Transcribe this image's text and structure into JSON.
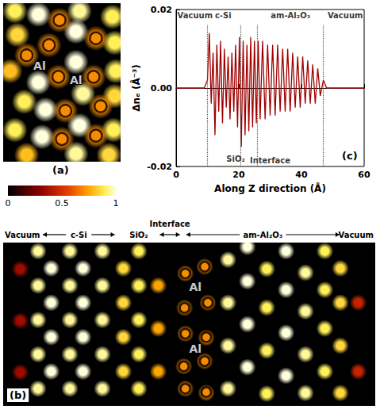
{
  "chart_data": [
    {
      "type": "density_map",
      "panel": "(a)",
      "xlim": [
        0,
        10
      ],
      "ylim": [
        0,
        14
      ],
      "tick_labels": false,
      "points": {
        "x": [
          1.0,
          3.0,
          6.5,
          9.3,
          1.2,
          6.2,
          9.5,
          0.6,
          3.0,
          6.2,
          9.6,
          1.8,
          3.6,
          6.8,
          9.5,
          1.0,
          3.3,
          6.5,
          9.4,
          2.0,
          6.2,
          9.0,
          4.8,
          7.9,
          3.9,
          2.0,
          4.7,
          7.7,
          8.3,
          5.3,
          5.0,
          7.9
        ],
        "y": [
          13.3,
          13.0,
          13.3,
          12.8,
          11.2,
          11.5,
          10.5,
          8.0,
          7.0,
          8.8,
          8.0,
          5.3,
          4.6,
          6.0,
          5.8,
          2.8,
          2.2,
          3.2,
          2.8,
          0.6,
          0.7,
          0.6,
          12.5,
          10.9,
          10.3,
          9.4,
          7.5,
          7.5,
          4.9,
          4.5,
          2.0,
          2.3
        ],
        "values": [
          0.9,
          1,
          0.95,
          0.9,
          0.85,
          1,
          0.9,
          0.8,
          1,
          1,
          0.9,
          0.9,
          1,
          0.95,
          0.85,
          0.9,
          1,
          1,
          0.9,
          0.8,
          0.95,
          0.85,
          0.7,
          0.7,
          0.7,
          0.7,
          0.7,
          0.7,
          0.7,
          0.7,
          0.7,
          0.7
        ]
      },
      "marked_atoms": {
        "x": [
          4.8,
          7.9,
          3.9,
          2.0,
          4.7,
          7.7,
          8.3,
          5.3,
          5.0,
          7.9
        ],
        "y": [
          12.5,
          10.9,
          10.3,
          9.4,
          7.5,
          7.5,
          4.9,
          4.5,
          2.0,
          2.3
        ]
      },
      "annotations": [
        {
          "text": "Al",
          "x": 3.1,
          "y": 8.5
        },
        {
          "text": "Al",
          "x": 6.2,
          "y": 7.2
        }
      ],
      "colorbar": {
        "range": [
          0,
          1
        ],
        "ticks": [
          0,
          0.5,
          1
        ]
      }
    },
    {
      "type": "line",
      "panel": "(c)",
      "xlim": [
        0,
        60
      ],
      "ylim": [
        -0.02,
        0.02
      ],
      "xticks": [
        0,
        20,
        40,
        60
      ],
      "yticks": [
        -0.02,
        {
          "value": 0,
          "label": "0.00"
        },
        0.02
      ],
      "x_label": "Along Z direction (Å)",
      "y_label": "Δnₑ (Å⁻³)",
      "grid": false,
      "color": "#a00000",
      "x": [
        0,
        9,
        10,
        10.6,
        11.2,
        11.8,
        12.4,
        13.0,
        13.6,
        14.2,
        14.8,
        15.4,
        16.0,
        16.6,
        17.2,
        17.8,
        18.4,
        19.0,
        19.6,
        20.2,
        20.8,
        21.4,
        22.0,
        22.6,
        23.2,
        23.8,
        24.4,
        25.0,
        25.6,
        26.2,
        26.8,
        27.6,
        28.4,
        29.2,
        30.0,
        30.8,
        31.6,
        32.4,
        33.2,
        34.0,
        34.8,
        35.6,
        36.4,
        37.2,
        38.0,
        38.8,
        39.6,
        40.4,
        41.2,
        42.0,
        42.8,
        43.6,
        44.4,
        45.2,
        46.0,
        47,
        48,
        60
      ],
      "values": [
        0,
        0,
        0.002,
        0.014,
        -0.004,
        0.009,
        -0.012,
        0.011,
        -0.006,
        0.012,
        -0.009,
        0.01,
        -0.005,
        0.008,
        -0.008,
        0.009,
        -0.006,
        0.011,
        -0.01,
        0.013,
        -0.015,
        0.012,
        -0.012,
        0.011,
        -0.011,
        0.013,
        -0.01,
        0.012,
        -0.009,
        0.012,
        -0.008,
        0.012,
        -0.008,
        0.011,
        -0.007,
        0.011,
        -0.007,
        0.011,
        -0.006,
        0.01,
        -0.006,
        0.01,
        -0.006,
        0.009,
        -0.005,
        0.008,
        -0.005,
        0.008,
        -0.004,
        0.007,
        -0.004,
        0.006,
        -0.004,
        0.005,
        -0.002,
        0.002,
        0,
        0
      ],
      "boundaries": [
        10,
        20.5,
        26,
        47
      ],
      "annotations": [
        {
          "text": "Vacuum",
          "x": 0.4,
          "y": 0.0185
        },
        {
          "text": "c-Si",
          "x": 15,
          "y": 0.0185
        },
        {
          "text": "am-Al₂O₃",
          "x": 36.5,
          "y": 0.0185
        },
        {
          "text": "Vacuum",
          "x": 59.6,
          "y": 0.0185
        },
        {
          "text": "SiO₂",
          "x": 19,
          "y": -0.018
        },
        {
          "text": "Interface",
          "x": 30,
          "y": -0.0185
        }
      ]
    },
    {
      "type": "density_map",
      "panel": "(b)",
      "xlim": [
        0,
        48
      ],
      "ylim": [
        0,
        19
      ],
      "tick_labels": false,
      "regions": [
        {
          "label": "Vacuum",
          "from": 0,
          "to": 4.5
        },
        {
          "label": "c-Si",
          "from": 4.5,
          "to": 15
        },
        {
          "label": "SiO₂",
          "from": 15,
          "to": 20
        },
        {
          "label": "Interface",
          "from": 20,
          "to": 23
        },
        {
          "label": "am-Al₂O₃",
          "from": 23,
          "to": 44
        },
        {
          "label": "Vacuum",
          "from": 44,
          "to": 48
        }
      ],
      "points": {
        "x": [
          2.2,
          2.2,
          2.2,
          4.5,
          4.5,
          4.5,
          4.5,
          4.5,
          6.2,
          6.2,
          6.2,
          6.2,
          8.6,
          8.6,
          8.6,
          8.6,
          8.6,
          10.3,
          10.3,
          10.3,
          10.3,
          12.8,
          12.8,
          12.8,
          12.8,
          12.8,
          15.5,
          15.5,
          15.5,
          15.5,
          17.5,
          17.5,
          17.5,
          17.5,
          17.5,
          20,
          20,
          20,
          23.5,
          26.2,
          23.3,
          26,
          23.5,
          26.2,
          23.4,
          26.4,
          23.5,
          26,
          29,
          29,
          29,
          29,
          31.5,
          31.5,
          31.5,
          31.5,
          34,
          34,
          34,
          34,
          36.5,
          36.5,
          36.5,
          36.5,
          39,
          39,
          39,
          39,
          41.5,
          41.5,
          41.5,
          41.5,
          43.5,
          43.5,
          43.5,
          43.5,
          45.8,
          45.8
        ],
        "y": [
          4,
          10,
          16,
          2,
          6,
          10,
          14,
          18,
          4,
          8,
          12,
          16,
          2,
          6,
          10,
          14,
          18,
          4,
          8,
          12,
          16,
          2,
          6,
          10,
          14,
          18,
          4,
          8,
          12,
          16,
          2,
          6,
          10,
          14,
          18,
          4,
          9,
          14,
          2,
          1.6,
          4.6,
          5.2,
          8.4,
          8,
          11.4,
          12,
          15.4,
          16.2,
          2,
          7,
          12,
          17,
          4.5,
          9.5,
          14.5,
          18.5,
          1.5,
          6.5,
          11.5,
          16,
          3.5,
          8.5,
          13.5,
          18,
          1.5,
          6,
          11,
          15.5,
          4,
          9,
          13.5,
          18,
          1.5,
          7,
          12,
          16,
          4,
          12
        ],
        "values": [
          0.35,
          0.35,
          0.35,
          0.95,
          0.95,
          0.95,
          0.95,
          0.95,
          1,
          1,
          1,
          1,
          0.95,
          0.95,
          0.95,
          0.95,
          0.95,
          1,
          1,
          1,
          1,
          0.95,
          0.95,
          0.95,
          0.95,
          0.95,
          0.85,
          0.85,
          0.85,
          0.85,
          0.9,
          0.9,
          0.9,
          0.9,
          0.9,
          0.75,
          0.75,
          0.75,
          0.7,
          0.7,
          0.7,
          0.7,
          0.7,
          0.7,
          0.7,
          0.7,
          0.7,
          0.7,
          0.95,
          0.95,
          0.95,
          0.95,
          1,
          1,
          1,
          1,
          0.9,
          0.9,
          0.9,
          0.9,
          1,
          1,
          1,
          1,
          0.95,
          0.95,
          0.95,
          0.95,
          0.9,
          0.9,
          0.9,
          0.9,
          0.85,
          0.85,
          0.85,
          0.85,
          0.45,
          0.45
        ]
      },
      "marked_atoms": {
        "x": [
          23.5,
          26.2,
          23.3,
          26,
          23.5,
          26.2,
          23.4,
          26.4,
          23.5,
          26
        ],
        "y": [
          2,
          1.6,
          4.6,
          5.2,
          8.4,
          8,
          11.4,
          12,
          15.4,
          16.2
        ]
      },
      "annotations": [
        {
          "text": "Al",
          "x": 24.8,
          "y": 13.8
        },
        {
          "text": "Al",
          "x": 24.8,
          "y": 6.6
        }
      ]
    }
  ]
}
